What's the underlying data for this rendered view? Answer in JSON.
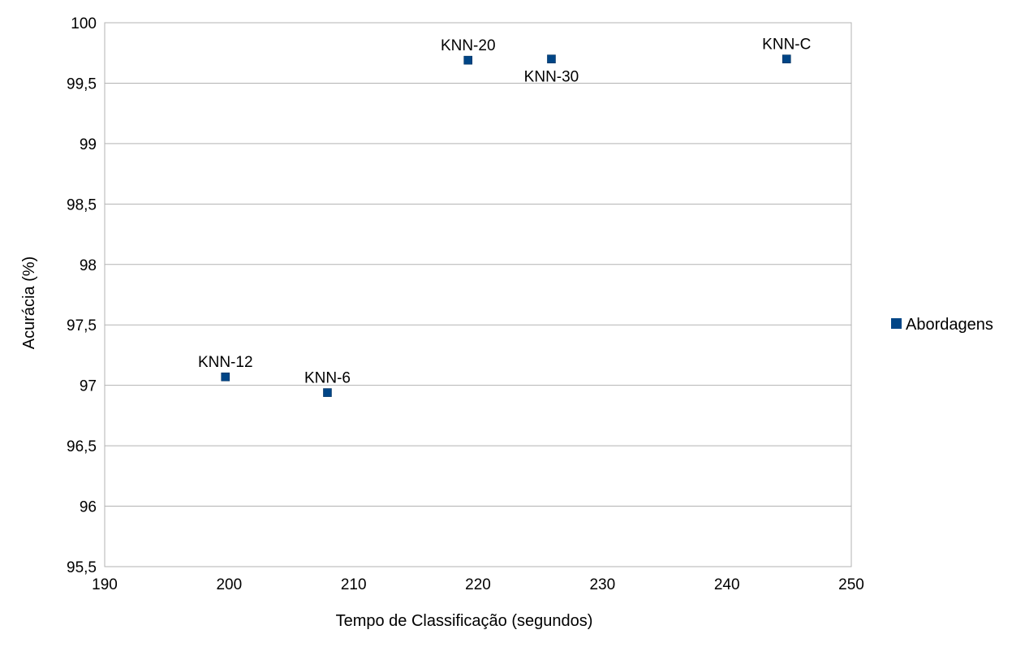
{
  "chart_data": {
    "type": "scatter",
    "xlabel": "Tempo de Classificação (segundos)",
    "ylabel": "Acurácia (%)",
    "xlim": [
      190,
      250
    ],
    "ylim": [
      95.5,
      100
    ],
    "x_ticks": [
      "190",
      "200",
      "210",
      "220",
      "230",
      "240",
      "250"
    ],
    "y_ticks": [
      "95,5",
      "96",
      "96,5",
      "97",
      "97,5",
      "98",
      "98,5",
      "99",
      "99,5",
      "100"
    ],
    "grid": "horizontal",
    "legend_position": "right",
    "series": [
      {
        "name": "Abordagens",
        "color": "#004586",
        "points": [
          {
            "label": "KNN-12",
            "x": 199.7,
            "y": 97.07,
            "label_pos": "above"
          },
          {
            "label": "KNN-6",
            "x": 207.9,
            "y": 96.94,
            "label_pos": "above"
          },
          {
            "label": "KNN-20",
            "x": 219.2,
            "y": 99.69,
            "label_pos": "above"
          },
          {
            "label": "KNN-30",
            "x": 225.9,
            "y": 99.7,
            "label_pos": "below"
          },
          {
            "label": "KNN-C",
            "x": 244.8,
            "y": 99.7,
            "label_pos": "above"
          }
        ]
      }
    ]
  }
}
